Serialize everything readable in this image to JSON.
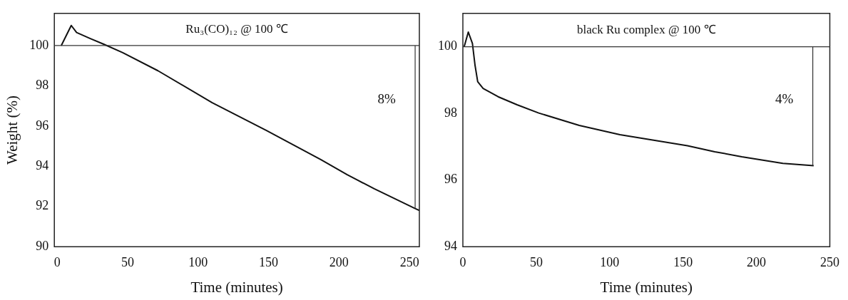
{
  "chart_data": [
    {
      "type": "line",
      "title": "Ru₃(CO)₁₂ @ 100 ℃",
      "xlabel": "Time (minutes)",
      "ylabel": "Weight (%)",
      "grid": false,
      "legend": false,
      "marker": "none",
      "xlim": [
        -2,
        257
      ],
      "ylim": [
        90,
        101.6
      ],
      "xticks": [
        0,
        50,
        100,
        150,
        200,
        250
      ],
      "yticks": [
        90,
        92,
        94,
        96,
        98,
        100
      ],
      "series": [
        {
          "color": "#111111",
          "x": [
            2.9,
            10,
            13.8,
            23.5,
            33,
            46.5,
            71.5,
            110,
            148.5,
            187,
            206,
            225,
            254,
            257
          ],
          "values": [
            100,
            101.0,
            100.65,
            100.35,
            100.07,
            99.65,
            98.75,
            97.16,
            95.78,
            94.33,
            93.57,
            92.88,
            91.9,
            91.8
          ]
        }
      ],
      "ref_lines": [
        {
          "axis": "y",
          "value": 100,
          "label": null,
          "color": "#333333"
        },
        {
          "axis": "x",
          "value": 254,
          "label": null,
          "color": "#333333"
        }
      ],
      "annotations": [
        "8%"
      ]
    },
    {
      "type": "line",
      "title": "black Ru complex @ 100 ℃",
      "xlabel": "Time (minutes)",
      "grid": false,
      "legend": false,
      "marker": "none",
      "xlim": [
        0,
        250
      ],
      "ylim": [
        94,
        101.0
      ],
      "xticks": [
        0,
        50,
        100,
        150,
        200,
        250
      ],
      "yticks": [
        94,
        96,
        98,
        100
      ],
      "series": [
        {
          "color": "#111111",
          "x": [
            0.9,
            3.7,
            6.5,
            8.3,
            10.1,
            13.8,
            24,
            36.9,
            51.7,
            79.3,
            107,
            153,
            171.6,
            190,
            218,
            239
          ],
          "values": [
            100,
            100.44,
            100.1,
            99.44,
            98.95,
            98.75,
            98.5,
            98.26,
            98.01,
            97.64,
            97.36,
            97.03,
            96.85,
            96.7,
            96.5,
            96.43
          ]
        }
      ],
      "ref_lines": [
        {
          "axis": "y",
          "value": 100,
          "label": null,
          "color": "#333333"
        },
        {
          "axis": "x",
          "value": 238.4,
          "label": null,
          "color": "#333333"
        }
      ],
      "annotations": [
        "4%"
      ]
    }
  ]
}
